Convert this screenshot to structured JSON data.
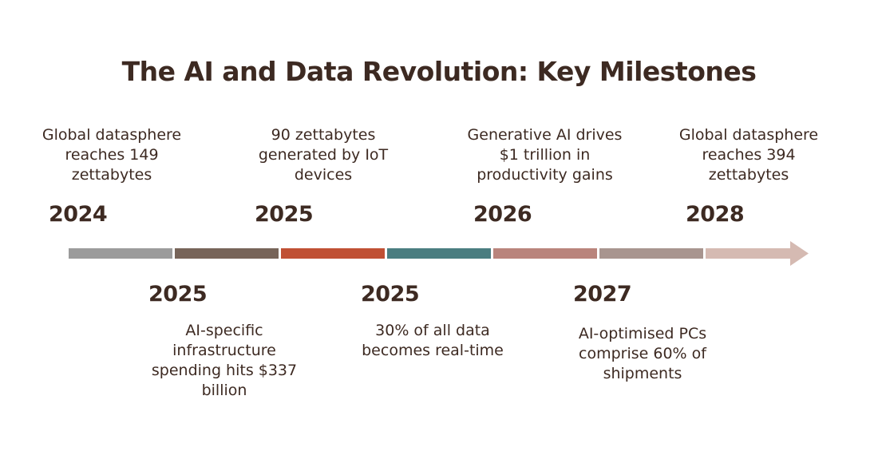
{
  "title": "The AI and Data Revolution: Key Milestones",
  "milestones_above": [
    {
      "year": "2024",
      "text": "Global datasphere reaches 149 zettabytes"
    },
    {
      "year": "2025",
      "text": "90 zettabytes generated by IoT devices"
    },
    {
      "year": "2026",
      "text": "Generative AI drives $1 trillion in productivity gains"
    },
    {
      "year": "2028",
      "text": "Global datasphere reaches 394 zettabytes"
    }
  ],
  "milestones_below": [
    {
      "year": "2025",
      "text": "AI-specific infrastructure spending hits $337 billion"
    },
    {
      "year": "2025",
      "text": "30% of all data becomes real-time"
    },
    {
      "year": "2027",
      "text": "AI-optimised PCs comprise 60% of shipments"
    }
  ],
  "timeline_colors": [
    "#9b9b9b",
    "#776459",
    "#c05034",
    "#4a7d80",
    "#b9847c",
    "#a8958f",
    "#d5bab2"
  ]
}
